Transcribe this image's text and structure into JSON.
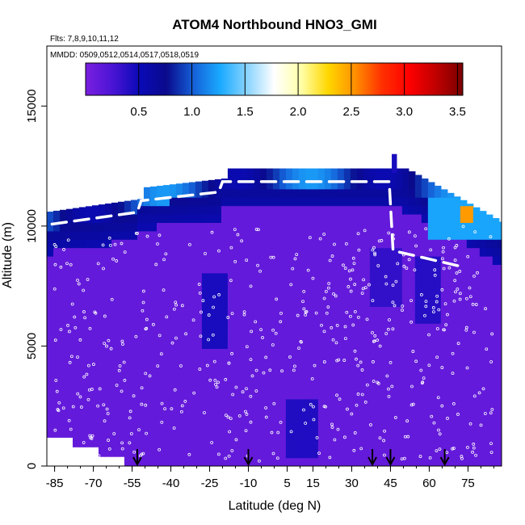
{
  "chart_data": {
    "type": "heatmap",
    "title": "ATOM4 Northbound HNO3_GMI",
    "subtitle_flights": "Flts: 7,8,9,10,11,12",
    "subtitle_dates": "MMDD: 0509,0512,0514,0517,0518,0519",
    "xlabel": "Latitude (deg N)",
    "ylabel": "Altitude (m)",
    "xlim": [
      -88,
      88
    ],
    "ylim": [
      0,
      17500
    ],
    "x_ticks": [
      -85,
      -70,
      -55,
      -40,
      -25,
      -10,
      5,
      15,
      30,
      45,
      60,
      75
    ],
    "y_ticks": [
      0,
      5000,
      10000,
      15000
    ],
    "colorbar": {
      "range": [
        0,
        3.55
      ],
      "ticks": [
        0.5,
        1.0,
        1.5,
        2.0,
        2.5,
        3.0,
        3.5
      ],
      "tick_labels": [
        "0.5",
        "1.0",
        "1.5",
        "2.0",
        "2.5",
        "3.0",
        "3.5"
      ],
      "colors": [
        "#7b1fe0",
        "#4a14d4",
        "#0a0ab8",
        "#0a0a8c",
        "#1560d8",
        "#1aaaff",
        "#8ad4ff",
        "#ffffff",
        "#ffffa8",
        "#ffd700",
        "#ff9000",
        "#ff3000",
        "#ff0000",
        "#c00000",
        "#780000"
      ]
    },
    "flight_arrows_lat": [
      -53,
      -10,
      38,
      45,
      66
    ],
    "regions": [
      {
        "name": "background",
        "value": 0.12
      },
      {
        "name": "upper-troposphere-band",
        "value": 0.55
      },
      {
        "name": "tropopause-band",
        "value": 1.1
      },
      {
        "name": "arctic-high-patch",
        "value": 2.5
      }
    ]
  }
}
